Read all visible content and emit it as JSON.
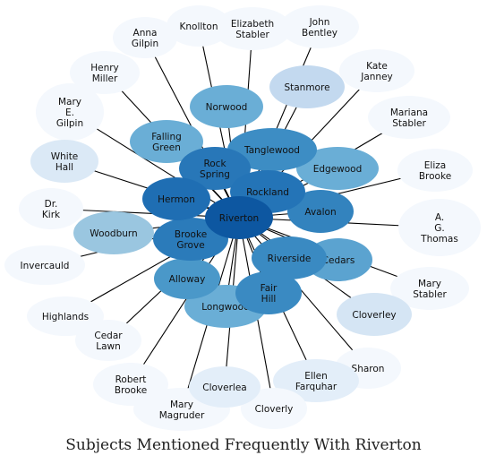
{
  "title": "Subjects Mentioned Frequently With Riverton",
  "center": "Riverton",
  "nodes": [
    {
      "id": "elizabeth-stabler",
      "lines": [
        "Elizabeth",
        "Stabler"
      ],
      "color": "#f4f8fd"
    },
    {
      "id": "john-bentley",
      "lines": [
        "John",
        "Bentley"
      ],
      "color": "#f4f8fd"
    },
    {
      "id": "knollton",
      "lines": [
        "Knollton"
      ],
      "color": "#f4f8fd"
    },
    {
      "id": "anna-gilpin",
      "lines": [
        "Anna",
        "Gilpin"
      ],
      "color": "#f4f8fd"
    },
    {
      "id": "kate-janney",
      "lines": [
        "Kate",
        "Janney"
      ],
      "color": "#f4f8fd"
    },
    {
      "id": "henry-miller",
      "lines": [
        "Henry",
        "Miller"
      ],
      "color": "#f4f8fd"
    },
    {
      "id": "mary-e-gilpin",
      "lines": [
        "Mary",
        "E.",
        "Gilpin"
      ],
      "color": "#f4f8fd"
    },
    {
      "id": "mariana-stabler",
      "lines": [
        "Mariana",
        "Stabler"
      ],
      "color": "#f4f8fd"
    },
    {
      "id": "eliza-brooke",
      "lines": [
        "Eliza",
        "Brooke"
      ],
      "color": "#f4f8fd"
    },
    {
      "id": "dr-kirk",
      "lines": [
        "Dr.",
        "Kirk"
      ],
      "color": "#f4f8fd"
    },
    {
      "id": "a-g-thomas",
      "lines": [
        "A.",
        "G.",
        "Thomas"
      ],
      "color": "#f4f8fd"
    },
    {
      "id": "invercauld",
      "lines": [
        "Invercauld"
      ],
      "color": "#f4f8fd"
    },
    {
      "id": "mary-stabler",
      "lines": [
        "Mary",
        "Stabler"
      ],
      "color": "#f4f8fd"
    },
    {
      "id": "highlands",
      "lines": [
        "Highlands"
      ],
      "color": "#f4f8fd"
    },
    {
      "id": "cedar-lawn",
      "lines": [
        "Cedar",
        "Lawn"
      ],
      "color": "#f4f8fd"
    },
    {
      "id": "sharon",
      "lines": [
        "Sharon"
      ],
      "color": "#f4f8fd"
    },
    {
      "id": "robert-brooke",
      "lines": [
        "Robert",
        "Brooke"
      ],
      "color": "#f4f8fd"
    },
    {
      "id": "ellen-farquhar",
      "lines": [
        "Ellen",
        "Farquhar"
      ],
      "color": "#e3eef9"
    },
    {
      "id": "mary-magruder",
      "lines": [
        "Mary",
        "Magruder"
      ],
      "color": "#f4f8fd"
    },
    {
      "id": "cloverly-bottom",
      "lines": [
        "Cloverly"
      ],
      "color": "#f4f8fd"
    },
    {
      "id": "cloverlea",
      "lines": [
        "Cloverlea"
      ],
      "color": "#e3eef9"
    },
    {
      "id": "white-hall",
      "lines": [
        "White",
        "Hall"
      ],
      "color": "#dbe9f6"
    },
    {
      "id": "cloverley",
      "lines": [
        "Cloverley"
      ],
      "color": "#d5e5f4"
    },
    {
      "id": "stanmore",
      "lines": [
        "Stanmore"
      ],
      "color": "#c3d9ef"
    },
    {
      "id": "woodburn",
      "lines": [
        "Woodburn"
      ],
      "color": "#9ac6e0"
    },
    {
      "id": "falling-green",
      "lines": [
        "Falling",
        "Green"
      ],
      "color": "#6aaed6"
    },
    {
      "id": "norwood",
      "lines": [
        "Norwood"
      ],
      "color": "#6aaed6"
    },
    {
      "id": "edgewood",
      "lines": [
        "Edgewood"
      ],
      "color": "#6aaed6"
    },
    {
      "id": "longwood",
      "lines": [
        "Longwood"
      ],
      "color": "#6aaed6"
    },
    {
      "id": "cedars",
      "lines": [
        "Cedars"
      ],
      "color": "#5ba3d0"
    },
    {
      "id": "alloway",
      "lines": [
        "Alloway"
      ],
      "color": "#4a98c9"
    },
    {
      "id": "tanglewood",
      "lines": [
        "Tanglewood"
      ],
      "color": "#3d8dc4"
    },
    {
      "id": "fair-hill",
      "lines": [
        "Fair",
        "Hill"
      ],
      "color": "#3a8ac2"
    },
    {
      "id": "riverside",
      "lines": [
        "Riverside"
      ],
      "color": "#3a8ac2"
    },
    {
      "id": "avalon",
      "lines": [
        "Avalon"
      ],
      "color": "#3383be"
    },
    {
      "id": "brooke-grove",
      "lines": [
        "Brooke",
        "Grove"
      ],
      "color": "#2b7bba"
    },
    {
      "id": "rock-spring",
      "lines": [
        "Rock",
        "Spring"
      ],
      "color": "#2877b8"
    },
    {
      "id": "rockland",
      "lines": [
        "Rockland"
      ],
      "color": "#2474b7"
    },
    {
      "id": "hermon",
      "lines": [
        "Hermon"
      ],
      "color": "#1f6eb3"
    },
    {
      "id": "riverton",
      "lines": [
        "Riverton"
      ],
      "color": "#0d57a1"
    }
  ]
}
